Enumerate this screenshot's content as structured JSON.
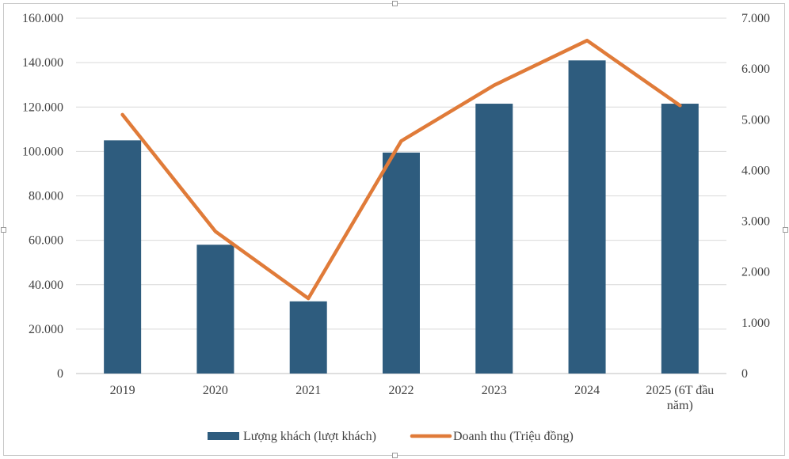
{
  "chart_data": {
    "type": "bar+line",
    "categories": [
      "2019",
      "2020",
      "2021",
      "2022",
      "2023",
      "2024",
      "2025 (6T đầu năm)"
    ],
    "category_lines": [
      [
        "2019"
      ],
      [
        "2020"
      ],
      [
        "2021"
      ],
      [
        "2022"
      ],
      [
        "2023"
      ],
      [
        "2024"
      ],
      [
        "2025 (6T đầu",
        "năm)"
      ]
    ],
    "series": [
      {
        "name": "Lượng khách (lượt khách)",
        "type": "bar",
        "axis": "left",
        "color": "#2e5c7e",
        "values": [
          105000,
          58000,
          32500,
          99500,
          121500,
          141000,
          121500
        ]
      },
      {
        "name": "Doanh thu (Triệu đồng)",
        "type": "line",
        "axis": "right",
        "color": "#e07b39",
        "values": [
          5100,
          2800,
          1480,
          4580,
          5680,
          6560,
          5280
        ]
      }
    ],
    "y_left": {
      "min": 0,
      "max": 160000,
      "step": 20000,
      "tick_labels": [
        "0",
        "20.000",
        "40.000",
        "60.000",
        "80.000",
        "100.000",
        "120.000",
        "140.000",
        "160.000"
      ]
    },
    "y_right": {
      "min": 0,
      "max": 7000,
      "step": 1000,
      "tick_labels": [
        "0",
        "1.000",
        "2.000",
        "3.000",
        "4.000",
        "5.000",
        "6.000",
        "7.000"
      ]
    },
    "grid": true,
    "legend_position": "bottom",
    "title": ""
  }
}
